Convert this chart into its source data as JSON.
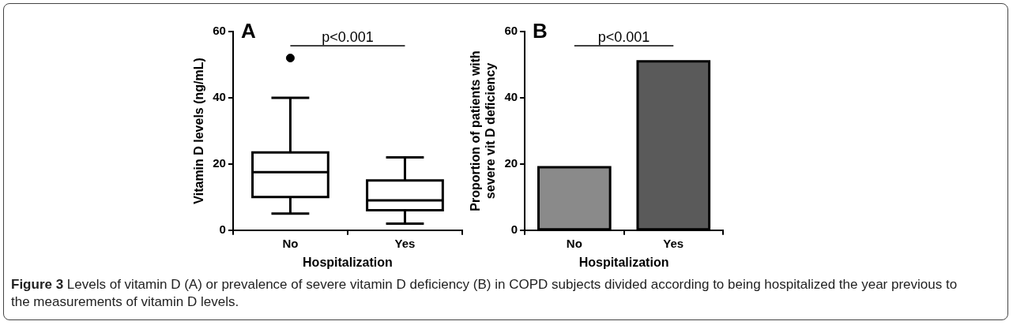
{
  "chart_data": [
    {
      "type": "box",
      "title": "A",
      "xlabel": "Hospitalization",
      "ylabel": "Vitamin D levels (ng/mL)",
      "categories": [
        "No",
        "Yes"
      ],
      "boxes": [
        {
          "low": 5,
          "q1": 10,
          "median": 17.5,
          "q3": 23.5,
          "high": 40,
          "outliers": [
            52
          ]
        },
        {
          "low": 2,
          "q1": 6,
          "median": 9,
          "q3": 15,
          "high": 22
        }
      ],
      "ylim": [
        0,
        60
      ],
      "yticks": [
        0,
        20,
        40,
        60
      ],
      "grid": false,
      "legend": false,
      "annotations": [
        "p<0.001",
        "Figure 3",
        "Levels of vitamin D (A) or prevalence of severe vitamin D deficiency (B) in COPD subjects divided according to being hospitalized the year previous to the measurements of vitamin D levels."
      ]
    },
    {
      "type": "bar",
      "title": "B",
      "xlabel": "Hospitalization",
      "ylabel": "Proportion of patients with severe vit D deficiency",
      "categories": [
        "No",
        "Yes"
      ],
      "values": [
        19,
        51
      ],
      "colors": [
        "#8a8a8a",
        "#5a5a5a"
      ],
      "ylim": [
        0,
        60
      ],
      "yticks": [
        0,
        20,
        40,
        60
      ],
      "grid": false,
      "legend": false,
      "annotations": [
        "p<0.001"
      ]
    }
  ]
}
